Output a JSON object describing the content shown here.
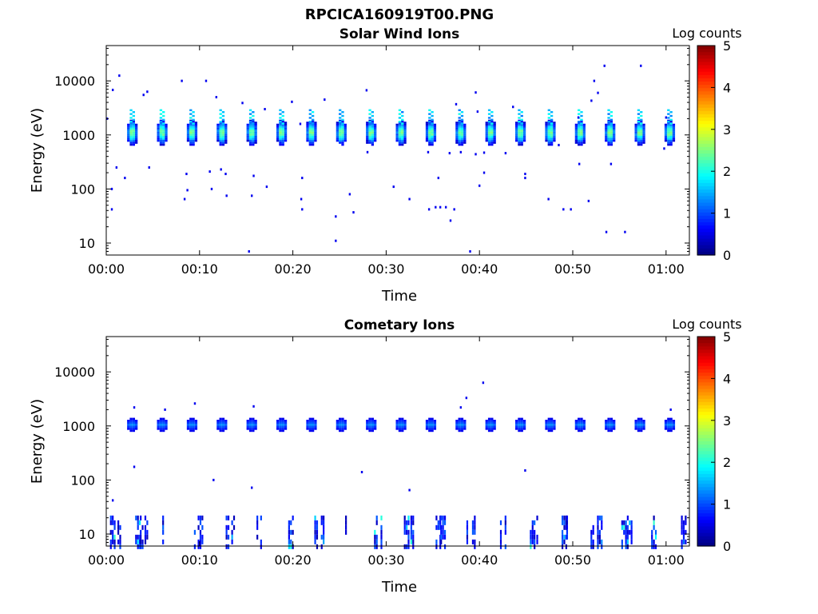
{
  "figure_title": "RPCICA160919T00.PNG",
  "chart_data": [
    {
      "type": "heatmap",
      "title": "Solar Wind Ions",
      "xlabel": "Time",
      "ylabel": "Energy (eV)",
      "yscale": "log",
      "ylim": [
        6,
        45000
      ],
      "xlim_minutes": [
        0,
        62.5
      ],
      "x_ticks": [
        "00:00",
        "00:10",
        "00:20",
        "00:30",
        "00:40",
        "00:50",
        "01:00"
      ],
      "y_ticks": [
        "10",
        "100",
        "1000",
        "10000"
      ],
      "colorbar": {
        "label": "Log counts",
        "range": [
          0,
          5
        ],
        "ticks": [
          "0",
          "1",
          "2",
          "3",
          "4",
          "5"
        ],
        "colormap": "jet"
      },
      "grid": false,
      "blobs_minutes": [
        2.8,
        6.0,
        9.2,
        12.4,
        15.6,
        18.8,
        22.0,
        25.2,
        28.4,
        31.6,
        34.8,
        38.0,
        41.2,
        44.4,
        47.6,
        50.8,
        54.0,
        57.2,
        60.4
      ],
      "blob_energy_ev": 1100,
      "blob_peak_log_counts": 3.0,
      "scatter_points": [
        {
          "t": 0.1,
          "e": 2000
        },
        {
          "t": 0.7,
          "e": 6800
        },
        {
          "t": 1.4,
          "e": 12500
        },
        {
          "t": 4.0,
          "e": 5500
        },
        {
          "t": 4.4,
          "e": 6300
        },
        {
          "t": 8.1,
          "e": 10000
        },
        {
          "t": 10.7,
          "e": 10000
        },
        {
          "t": 11.8,
          "e": 5000
        },
        {
          "t": 14.6,
          "e": 3900
        },
        {
          "t": 17.0,
          "e": 3000
        },
        {
          "t": 19.9,
          "e": 4100
        },
        {
          "t": 20.8,
          "e": 1600
        },
        {
          "t": 23.4,
          "e": 4500
        },
        {
          "t": 27.9,
          "e": 6700
        },
        {
          "t": 37.5,
          "e": 3700
        },
        {
          "t": 39.6,
          "e": 6100
        },
        {
          "t": 39.8,
          "e": 2700
        },
        {
          "t": 43.6,
          "e": 3300
        },
        {
          "t": 53.4,
          "e": 19000
        },
        {
          "t": 52.3,
          "e": 10000
        },
        {
          "t": 52.0,
          "e": 4300
        },
        {
          "t": 57.3,
          "e": 19000
        },
        {
          "t": 52.7,
          "e": 6000
        },
        {
          "t": 50.6,
          "e": 2100
        },
        {
          "t": 60.0,
          "e": 2100
        },
        {
          "t": 1.1,
          "e": 250
        },
        {
          "t": 2.0,
          "e": 160
        },
        {
          "t": 4.6,
          "e": 250
        },
        {
          "t": 8.6,
          "e": 190
        },
        {
          "t": 11.1,
          "e": 210
        },
        {
          "t": 12.3,
          "e": 230
        },
        {
          "t": 12.8,
          "e": 190
        },
        {
          "t": 15.8,
          "e": 175
        },
        {
          "t": 17.2,
          "e": 110
        },
        {
          "t": 21.0,
          "e": 160
        },
        {
          "t": 35.6,
          "e": 160
        },
        {
          "t": 40.5,
          "e": 200
        },
        {
          "t": 44.9,
          "e": 190
        },
        {
          "t": 44.9,
          "e": 160
        },
        {
          "t": 40.0,
          "e": 115
        },
        {
          "t": 50.7,
          "e": 290
        },
        {
          "t": 54.1,
          "e": 290
        },
        {
          "t": 0.6,
          "e": 100
        },
        {
          "t": 8.4,
          "e": 65
        },
        {
          "t": 8.7,
          "e": 95
        },
        {
          "t": 11.3,
          "e": 100
        },
        {
          "t": 12.9,
          "e": 75
        },
        {
          "t": 15.6,
          "e": 75
        },
        {
          "t": 20.9,
          "e": 65
        },
        {
          "t": 26.1,
          "e": 80
        },
        {
          "t": 30.8,
          "e": 110
        },
        {
          "t": 32.5,
          "e": 65
        },
        {
          "t": 47.4,
          "e": 65
        },
        {
          "t": 51.7,
          "e": 60
        },
        {
          "t": 0.6,
          "e": 42
        },
        {
          "t": 21.0,
          "e": 42
        },
        {
          "t": 26.5,
          "e": 37
        },
        {
          "t": 34.6,
          "e": 42
        },
        {
          "t": 35.3,
          "e": 46
        },
        {
          "t": 35.8,
          "e": 46
        },
        {
          "t": 36.4,
          "e": 46
        },
        {
          "t": 37.3,
          "e": 42
        },
        {
          "t": 49.0,
          "e": 42
        },
        {
          "t": 49.8,
          "e": 42
        },
        {
          "t": 24.6,
          "e": 31
        },
        {
          "t": 36.9,
          "e": 26
        },
        {
          "t": 24.6,
          "e": 11
        },
        {
          "t": 53.6,
          "e": 16
        },
        {
          "t": 55.6,
          "e": 16
        },
        {
          "t": 15.3,
          "e": 7
        },
        {
          "t": 39.0,
          "e": 7
        },
        {
          "t": 28.0,
          "e": 480
        },
        {
          "t": 34.5,
          "e": 480
        },
        {
          "t": 36.8,
          "e": 460
        },
        {
          "t": 38.0,
          "e": 480
        },
        {
          "t": 39.6,
          "e": 440
        },
        {
          "t": 40.5,
          "e": 470
        },
        {
          "t": 42.8,
          "e": 460
        },
        {
          "t": 59.8,
          "e": 560
        },
        {
          "t": 48.5,
          "e": 650
        }
      ]
    },
    {
      "type": "heatmap",
      "title": "Cometary Ions",
      "xlabel": "Time",
      "ylabel": "Energy (eV)",
      "yscale": "log",
      "ylim": [
        6,
        45000
      ],
      "xlim_minutes": [
        0,
        62.5
      ],
      "x_ticks": [
        "00:00",
        "00:10",
        "00:20",
        "00:30",
        "00:40",
        "00:50",
        "01:00"
      ],
      "y_ticks": [
        "10",
        "100",
        "1000",
        "10000"
      ],
      "colorbar": {
        "label": "Log counts",
        "range": [
          0,
          5
        ],
        "ticks": [
          "0",
          "1",
          "2",
          "3",
          "4",
          "5"
        ],
        "colormap": "jet"
      },
      "grid": false,
      "blobs_minutes": [
        2.8,
        6.0,
        9.2,
        12.4,
        15.6,
        18.8,
        22.0,
        25.2,
        28.4,
        31.6,
        34.8,
        38.0,
        41.2,
        44.4,
        47.6,
        50.8,
        54.0,
        57.2,
        60.4
      ],
      "blob_energy_ev": 1050,
      "blob_peak_log_counts": 1.4,
      "low_energy_bursts_minutes": [
        0.4,
        1.2,
        3.1,
        3.6,
        4.1,
        6.0,
        9.4,
        9.8,
        12.8,
        13.4,
        16.1,
        16.5,
        19.5,
        22.3,
        23.0,
        25.6,
        28.7,
        29.4,
        31.9,
        32.6,
        35.3,
        35.8,
        38.6,
        39.2,
        42.2,
        42.7,
        45.4,
        46.1,
        48.8,
        49.3,
        51.9,
        52.6,
        55.2,
        55.8,
        58.4,
        61.6
      ],
      "low_energy_range_ev": [
        6,
        22
      ],
      "scatter_points": [
        {
          "t": 3.0,
          "e": 2200
        },
        {
          "t": 6.3,
          "e": 2000
        },
        {
          "t": 9.5,
          "e": 2600
        },
        {
          "t": 15.8,
          "e": 2300
        },
        {
          "t": 38.0,
          "e": 2200
        },
        {
          "t": 38.6,
          "e": 3300
        },
        {
          "t": 40.4,
          "e": 6300
        },
        {
          "t": 60.5,
          "e": 2000
        },
        {
          "t": 3.0,
          "e": 175
        },
        {
          "t": 11.5,
          "e": 100
        },
        {
          "t": 15.6,
          "e": 72
        },
        {
          "t": 27.4,
          "e": 140
        },
        {
          "t": 32.5,
          "e": 65
        },
        {
          "t": 44.9,
          "e": 150
        },
        {
          "t": 0.7,
          "e": 42
        }
      ]
    }
  ]
}
